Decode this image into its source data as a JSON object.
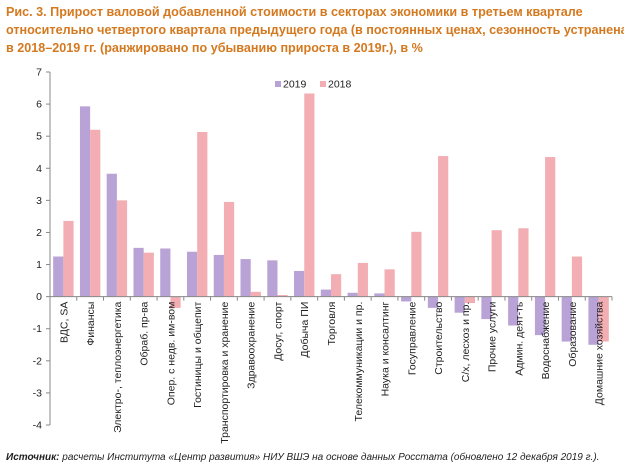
{
  "title_lines": [
    "Рис. 3. Прирост валовой добавленной стоимости в секторах экономики в третьем квартале",
    "относительно четвертого квартала предыдущего года (в постоянных ценах, сезонность устранена)",
    "в 2018–2019 гг. (ранжировано по убыванию прироста в 2019г.), в %"
  ],
  "source": {
    "label": "Источник:",
    "text": " расчеты Института «Центр развития» НИУ ВШЭ на основе данных Росстата (обновлено 12 декабря 2019 г.)."
  },
  "colors": {
    "s2019": "#b8a2d6",
    "s2018": "#f2aeb3",
    "axis": "#888888"
  },
  "chart_data": {
    "type": "bar",
    "categories": [
      "ВДС, SA",
      "Финансы",
      "Электро-, теплоэнергетика",
      "Обраб. пр-ва",
      "Опер. с недв. им-вом",
      "Гостиницы и общепит",
      "Транспортировка и хранение",
      "Здравоохранение",
      "Досуг, спорт",
      "Добыча ПИ",
      "Торговля",
      "Телекоммуникации и пр.",
      "Наука и консалтинг",
      "Госуправление",
      "Строительство",
      "С/х, лесхоз и пр.",
      "Прочие услуги",
      "Админ. деят-ть",
      "Водоснабжение",
      "Образование",
      "Домашние хозяйства"
    ],
    "series": [
      {
        "name": "2019",
        "values": [
          1.25,
          5.93,
          3.83,
          1.52,
          1.5,
          1.4,
          1.3,
          1.17,
          1.13,
          0.8,
          0.22,
          0.12,
          0.1,
          -0.15,
          -0.35,
          -0.5,
          -0.7,
          -0.9,
          -1.2,
          -1.4,
          -1.5
        ]
      },
      {
        "name": "2018",
        "values": [
          2.36,
          5.2,
          3.0,
          1.37,
          -0.35,
          5.13,
          2.95,
          0.15,
          0.05,
          6.33,
          0.7,
          1.05,
          0.85,
          2.02,
          4.38,
          -0.2,
          2.07,
          2.13,
          4.35,
          1.25,
          -1.4
        ]
      }
    ],
    "ylim": [
      -4,
      7
    ],
    "yticks": [
      "-4",
      "-3",
      "-2",
      "-1",
      "0",
      "1",
      "2",
      "3",
      "4",
      "5",
      "6",
      "7"
    ],
    "legend_position": "top-center",
    "grid": false
  }
}
